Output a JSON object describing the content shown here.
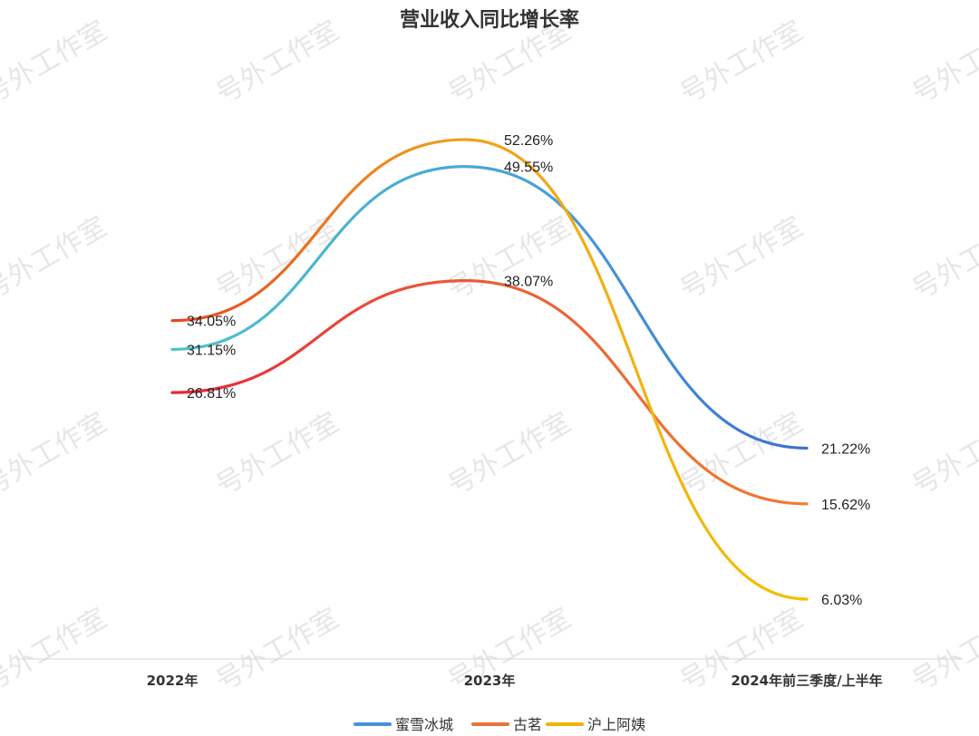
{
  "chart_data": {
    "type": "line",
    "title": "营业收入同比增长率",
    "categories": [
      "2022年",
      "2023年",
      "2024年前三季度/上半年"
    ],
    "series": [
      {
        "name": "蜜雪冰城",
        "values": [
          31.15,
          49.55,
          21.22
        ],
        "labels": [
          "31.15%",
          "49.55%",
          "21.22%"
        ],
        "color": "#4a90d9"
      },
      {
        "name": "古茗",
        "values": [
          26.81,
          38.07,
          15.62
        ],
        "labels": [
          "26.81%",
          "38.07%",
          "15.62%"
        ],
        "color": "#e8743b"
      },
      {
        "name": "沪上阿姨",
        "values": [
          34.05,
          52.26,
          6.03
        ],
        "labels": [
          "34.05%",
          "52.26%",
          "6.03%"
        ],
        "color": "#f0b400"
      }
    ],
    "xlabel": "",
    "ylabel": "",
    "grid": false,
    "legend_position": "bottom-center",
    "smooth": true
  },
  "watermark": "号外工作室"
}
